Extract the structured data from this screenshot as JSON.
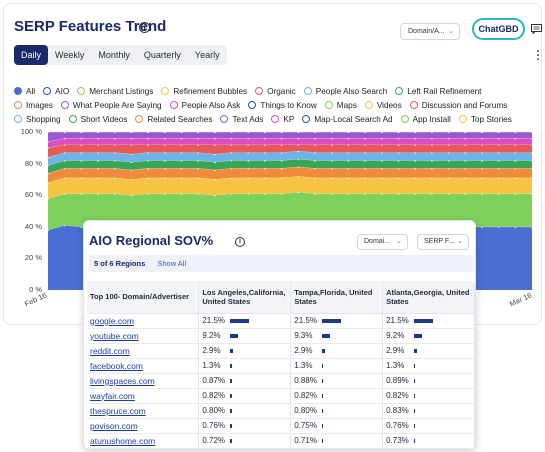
{
  "header": {
    "title": "SERP Features Trend",
    "domain_select": "Domain/A...",
    "chat_button": "ChatGBD"
  },
  "tabs": [
    "Daily",
    "Weekly",
    "Monthly",
    "Quarterly",
    "Yearly"
  ],
  "active_tab": "Daily",
  "legend": [
    [
      {
        "label": "All",
        "color": "#4a6fd3",
        "filled": true
      },
      {
        "label": "AIO",
        "color": "#2d4fa8"
      },
      {
        "label": "Merchant Listings",
        "color": "#7fcf5a"
      },
      {
        "label": "Refinement Bubbles",
        "color": "#f6c343"
      },
      {
        "label": "Organic",
        "color": "#e85a5a"
      },
      {
        "label": "People Also Search",
        "color": "#6cb4e8"
      },
      {
        "label": "Left Rail Refinement",
        "color": "#3aa655"
      }
    ],
    [
      {
        "label": "Images",
        "color": "#f08a3c"
      },
      {
        "label": "What People Are Saying",
        "color": "#9b59d0"
      },
      {
        "label": "People Also Ask",
        "color": "#d94fc2"
      },
      {
        "label": "Things to Know",
        "color": "#2d4fa8"
      },
      {
        "label": "Maps",
        "color": "#7fcf5a"
      },
      {
        "label": "Videos",
        "color": "#f6c343"
      },
      {
        "label": "Discussion and Forums",
        "color": "#e85a5a"
      }
    ],
    [
      {
        "label": "Shopping",
        "color": "#6cb4e8"
      },
      {
        "label": "Short Videos",
        "color": "#3aa655"
      },
      {
        "label": "Related Searches",
        "color": "#f08a3c"
      },
      {
        "label": "Text Ads",
        "color": "#9b59d0"
      },
      {
        "label": "KP",
        "color": "#d94fc2"
      },
      {
        "label": "Map-Local Search Ad",
        "color": "#2d4fa8"
      },
      {
        "label": "App Install",
        "color": "#7fcf5a"
      },
      {
        "label": "Top Stories",
        "color": "#f6c343"
      }
    ]
  ],
  "chart_data": {
    "type": "area",
    "stacked": true,
    "x_start": "Feb 16",
    "x_end": "Mar 16",
    "y_ticks": [
      "0 %",
      "20 %",
      "40 %",
      "60 %",
      "80 %",
      "100 %"
    ],
    "ylim": [
      0,
      100
    ],
    "grid": true,
    "series": [
      {
        "name": "All",
        "color": "#4a6fd3",
        "values": [
          38,
          41,
          40,
          40,
          40,
          39,
          40,
          40,
          40,
          40,
          39,
          40,
          40,
          40,
          40,
          41,
          40,
          40,
          40,
          40,
          40,
          40,
          40,
          40,
          40,
          40,
          40,
          40,
          40,
          40
        ]
      },
      {
        "name": "Merchant Listings",
        "color": "#7fcf5a",
        "values": [
          20,
          20,
          21,
          21,
          21,
          21,
          21,
          21,
          21,
          21,
          21,
          21,
          21,
          21,
          21,
          21,
          21,
          21,
          21,
          21,
          21,
          21,
          21,
          21,
          21,
          21,
          21,
          21,
          21,
          21
        ]
      },
      {
        "name": "Refinement Bubbles",
        "color": "#f6c343",
        "values": [
          10,
          10,
          10,
          10,
          10,
          10,
          10,
          10,
          10,
          10,
          10,
          10,
          10,
          10,
          10,
          10,
          10,
          10,
          10,
          10,
          10,
          10,
          10,
          10,
          10,
          10,
          10,
          10,
          10,
          10
        ]
      },
      {
        "name": "Images",
        "color": "#f08a3c",
        "values": [
          6,
          6,
          6,
          6,
          6,
          6,
          6,
          6,
          6,
          6,
          6,
          6,
          6,
          6,
          6,
          6,
          6,
          6,
          6,
          6,
          6,
          6,
          6,
          6,
          6,
          6,
          6,
          6,
          6,
          6
        ]
      },
      {
        "name": "Short Videos",
        "color": "#3aa655",
        "values": [
          5,
          5,
          5,
          5,
          5,
          5,
          5,
          5,
          5,
          5,
          5,
          5,
          5,
          5,
          5,
          5,
          5,
          5,
          5,
          5,
          5,
          5,
          5,
          5,
          5,
          5,
          5,
          5,
          5,
          5
        ]
      },
      {
        "name": "People Also Search",
        "color": "#6cb4e8",
        "values": [
          5,
          5,
          5,
          5,
          5,
          5,
          5,
          5,
          5,
          5,
          5,
          5,
          5,
          5,
          5,
          5,
          5,
          5,
          5,
          5,
          5,
          5,
          5,
          5,
          5,
          5,
          5,
          5,
          5,
          5
        ]
      },
      {
        "name": "Organic",
        "color": "#e85a5a",
        "values": [
          6,
          5,
          5,
          5,
          5,
          6,
          5,
          5,
          5,
          5,
          6,
          5,
          5,
          5,
          5,
          4,
          5,
          5,
          5,
          5,
          5,
          5,
          5,
          5,
          5,
          5,
          5,
          5,
          5,
          5
        ]
      },
      {
        "name": "People Also Ask",
        "color": "#d94fc2",
        "values": [
          4,
          4,
          4,
          4,
          4,
          4,
          4,
          4,
          4,
          4,
          4,
          4,
          4,
          4,
          4,
          4,
          4,
          4,
          4,
          4,
          4,
          4,
          4,
          4,
          4,
          4,
          4,
          4,
          4,
          4
        ]
      },
      {
        "name": "What People Are Saying",
        "color": "#9b59d0",
        "values": [
          6,
          4,
          4,
          4,
          4,
          4,
          4,
          4,
          4,
          4,
          4,
          4,
          4,
          4,
          4,
          4,
          4,
          4,
          4,
          4,
          4,
          4,
          4,
          4,
          4,
          4,
          4,
          4,
          4,
          4
        ]
      }
    ]
  },
  "sov": {
    "title": "AIO Regional SOV%",
    "domain_select": "Domai...",
    "feature_select": "SERP F...",
    "regions_count": "5 of 6 Regions",
    "show_all": "Show All",
    "columns": [
      "Top 100- Domain/Advertiser",
      "Los Angeles,California, United States",
      "Tampa,Florida, United States",
      "Atlanta,Georgia, United States"
    ],
    "rows": [
      {
        "domain": "google.com",
        "v": [
          "21.5%",
          "21.5%",
          "21.5%"
        ],
        "f": [
          21.5,
          21.5,
          21.5
        ]
      },
      {
        "domain": "youtube.com",
        "v": [
          "9.2%",
          "9.3%",
          "9.2%"
        ],
        "f": [
          9.2,
          9.3,
          9.2
        ]
      },
      {
        "domain": "reddit.com",
        "v": [
          "2.9%",
          "2.9%",
          "2.9%"
        ],
        "f": [
          2.9,
          2.9,
          2.9
        ]
      },
      {
        "domain": "facebook.com",
        "v": [
          "1.3%",
          "1.3%",
          "1.3%"
        ],
        "f": [
          1.3,
          1.3,
          1.3
        ]
      },
      {
        "domain": "livingspaces.com",
        "v": [
          "0.87%",
          "0.88%",
          "0.89%"
        ],
        "f": [
          0.87,
          0.88,
          0.89
        ]
      },
      {
        "domain": "wayfair.com",
        "v": [
          "0.82%",
          "0.82%",
          "0.82%"
        ],
        "f": [
          0.82,
          0.82,
          0.82
        ]
      },
      {
        "domain": "thespruce.com",
        "v": [
          "0.80%",
          "0.80%",
          "0.83%"
        ],
        "f": [
          0.8,
          0.8,
          0.83
        ]
      },
      {
        "domain": "povison.com",
        "v": [
          "0.76%",
          "0.75%",
          "0.76%"
        ],
        "f": [
          0.76,
          0.75,
          0.76
        ]
      },
      {
        "domain": "atunushome.com",
        "v": [
          "0.72%",
          "0.71%",
          "0.73%"
        ],
        "f": [
          0.72,
          0.71,
          0.73
        ]
      }
    ]
  }
}
